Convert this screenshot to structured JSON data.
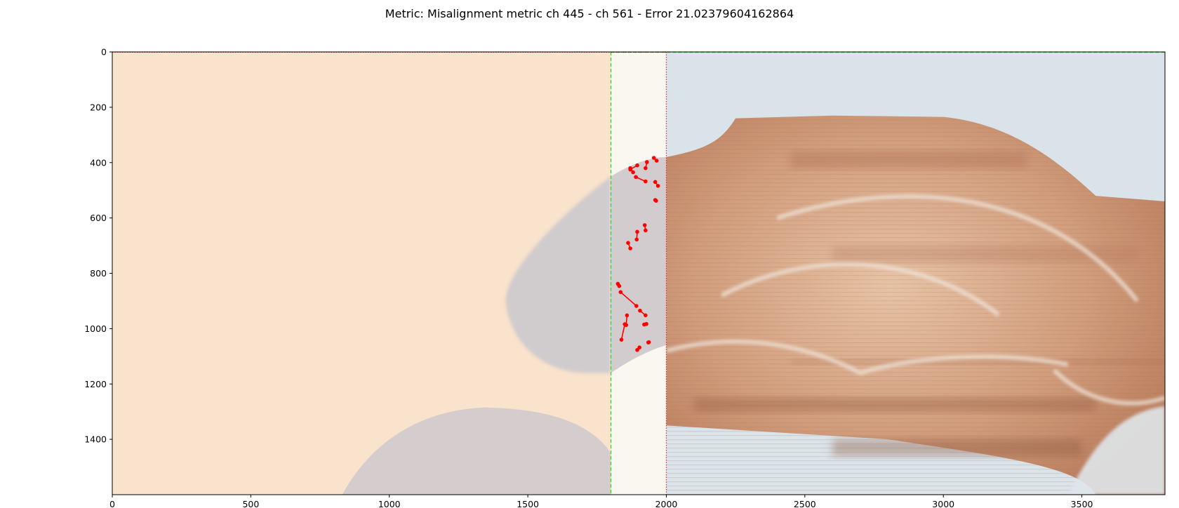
{
  "title": "Metric: Misalignment metric ch 445 - ch 561 - Error 21.02379604162864",
  "chart_data": {
    "type": "scatter",
    "title": "Metric: Misalignment metric ch 445 - ch 561 - Error 21.02379604162864",
    "xlabel": "",
    "ylabel": "",
    "xlim": [
      0,
      3800
    ],
    "ylim": [
      1600,
      0
    ],
    "y_inverted": true,
    "grid": false,
    "x_ticks": [
      0,
      500,
      1000,
      1500,
      2000,
      2500,
      3000,
      3500
    ],
    "y_ticks": [
      0,
      200,
      400,
      600,
      800,
      1000,
      1200,
      1400
    ],
    "background_image": {
      "left_panel_color": "#f9e3cd",
      "right_panel_color": "#d9e3e9",
      "overlap_color": "#faf6f0",
      "tissue_color": "#c49070",
      "left_tissue_color": "#c9c7cd"
    },
    "boundaries": [
      {
        "x": 1800,
        "style": "dashed",
        "color": "#22dd22"
      },
      {
        "x": 2000,
        "style": "dotted",
        "color": "#e53030"
      }
    ],
    "marker_color": "#ff0000",
    "segments": [
      {
        "x1": 1870,
        "y1": 425,
        "x2": 1895,
        "y2": 410
      },
      {
        "x1": 1880,
        "y1": 435,
        "x2": 1870,
        "y2": 420
      },
      {
        "x1": 1925,
        "y1": 420,
        "x2": 1930,
        "y2": 398
      },
      {
        "x1": 1955,
        "y1": 383,
        "x2": 1965,
        "y2": 393
      },
      {
        "x1": 1890,
        "y1": 452,
        "x2": 1925,
        "y2": 468
      },
      {
        "x1": 1960,
        "y1": 470,
        "x2": 1970,
        "y2": 484
      },
      {
        "x1": 1960,
        "y1": 535,
        "x2": 1963,
        "y2": 538
      },
      {
        "x1": 1922,
        "y1": 626,
        "x2": 1925,
        "y2": 645
      },
      {
        "x1": 1895,
        "y1": 650,
        "x2": 1893,
        "y2": 678
      },
      {
        "x1": 1862,
        "y1": 690,
        "x2": 1870,
        "y2": 710
      },
      {
        "x1": 1825,
        "y1": 838,
        "x2": 1830,
        "y2": 846
      },
      {
        "x1": 1835,
        "y1": 868,
        "x2": 1892,
        "y2": 918
      },
      {
        "x1": 1905,
        "y1": 935,
        "x2": 1925,
        "y2": 952
      },
      {
        "x1": 1858,
        "y1": 952,
        "x2": 1855,
        "y2": 987
      },
      {
        "x1": 1850,
        "y1": 984,
        "x2": 1838,
        "y2": 1040
      },
      {
        "x1": 1920,
        "y1": 985,
        "x2": 1928,
        "y2": 983
      },
      {
        "x1": 1895,
        "y1": 1077,
        "x2": 1903,
        "y2": 1068
      },
      {
        "x1": 1935,
        "y1": 1050,
        "x2": 1937,
        "y2": 1049
      }
    ]
  }
}
